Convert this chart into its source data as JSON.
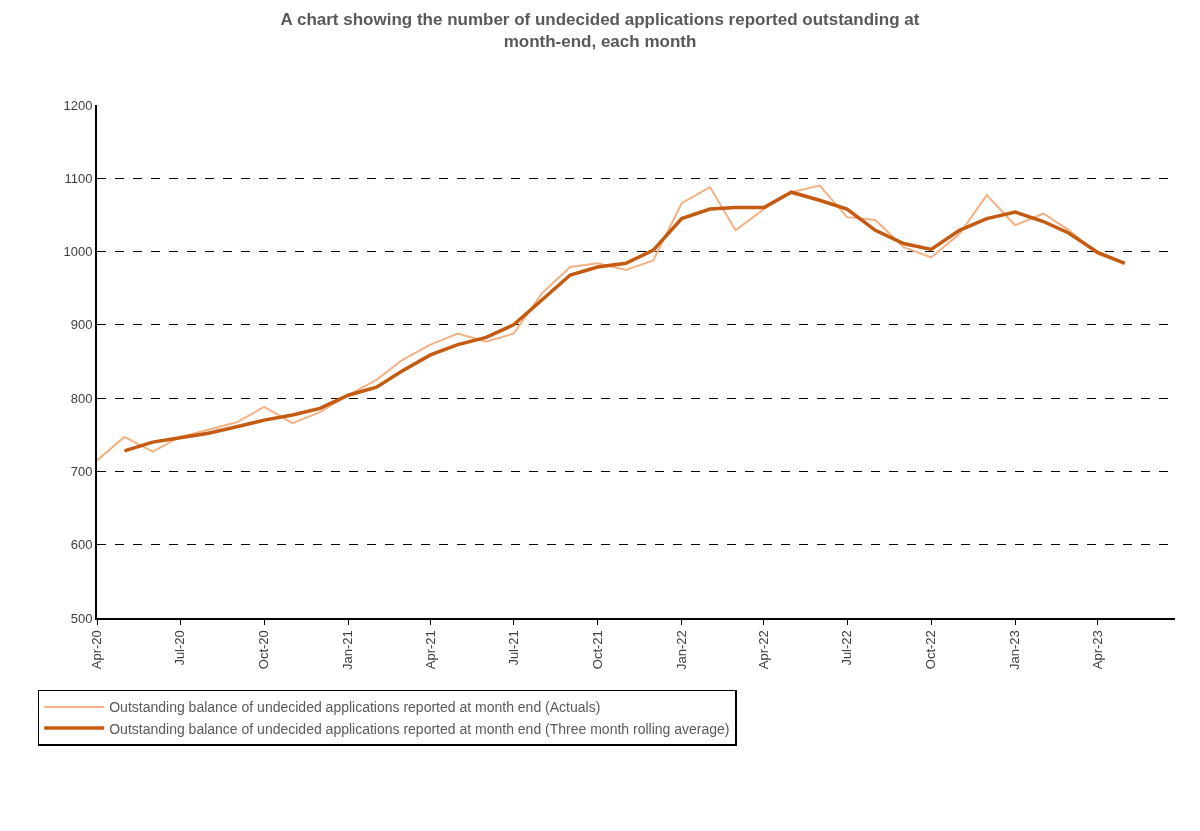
{
  "chart_data": {
    "type": "line",
    "title": "A chart showing the number of undecided applications reported outstanding at month-end, each month",
    "x": [
      "2020-04",
      "2020-05",
      "2020-06",
      "2020-07",
      "2020-08",
      "2020-09",
      "2020-10",
      "2020-11",
      "2020-12",
      "2021-01",
      "2021-02",
      "2021-03",
      "2021-04",
      "2021-05",
      "2021-06",
      "2021-07",
      "2021-08",
      "2021-09",
      "2021-10",
      "2021-11",
      "2021-12",
      "2022-01",
      "2022-02",
      "2022-03",
      "2022-04",
      "2022-05",
      "2022-06",
      "2022-07",
      "2022-08",
      "2022-09",
      "2022-10",
      "2022-11",
      "2022-12",
      "2023-01",
      "2023-02",
      "2023-03",
      "2023-04",
      "2023-05"
    ],
    "series": [
      {
        "name": "Outstanding balance of undecided applications reported at month end (Actuals)",
        "color": "#f4b183",
        "values": [
          715,
          747,
          727,
          747,
          757,
          767,
          788,
          766,
          781,
          804,
          825,
          852,
          873,
          888,
          877,
          888,
          943,
          979,
          984,
          975,
          988,
          1066,
          1088,
          1029,
          1058,
          1081,
          1090,
          1047,
          1043,
          1006,
          992,
          1024,
          1077,
          1036,
          1052,
          1029,
          997,
          984
        ]
      },
      {
        "name": "Outstanding balance of undecided applications reported at month end (Three month rolling average)",
        "color": "#c55a11",
        "x": [
          "2020-05",
          "2020-06",
          "2020-07",
          "2020-08",
          "2020-09",
          "2020-10",
          "2020-11",
          "2020-12",
          "2021-01",
          "2021-02",
          "2021-03",
          "2021-04",
          "2021-05",
          "2021-06",
          "2021-07",
          "2021-08",
          "2021-09",
          "2021-10",
          "2021-11",
          "2021-12",
          "2022-01",
          "2022-02",
          "2022-03",
          "2022-04",
          "2022-05",
          "2022-06",
          "2022-07",
          "2022-08",
          "2022-09",
          "2022-10",
          "2022-11",
          "2022-12",
          "2023-01",
          "2023-02",
          "2023-03",
          "2023-04",
          "2023-05"
        ],
        "values": [
          728,
          740,
          746,
          752,
          761,
          770,
          777,
          786,
          804,
          815,
          837,
          859,
          873,
          883,
          900,
          934,
          968,
          979,
          984,
          1002,
          1045,
          1058,
          1060,
          1060,
          1081,
          1070,
          1058,
          1029,
          1011,
          1003,
          1029,
          1045,
          1054,
          1041,
          1025,
          999,
          984
        ]
      }
    ],
    "xlim": [
      "2020-04-01",
      "2023-06-25"
    ],
    "xticks": [
      {
        "value": "2020-04",
        "label": "Apr-20"
      },
      {
        "value": "2020-07",
        "label": "Jul-20"
      },
      {
        "value": "2020-10",
        "label": "Oct-20"
      },
      {
        "value": "2021-01",
        "label": "Jan-21"
      },
      {
        "value": "2021-04",
        "label": "Apr-21"
      },
      {
        "value": "2021-07",
        "label": "Jul-21"
      },
      {
        "value": "2021-10",
        "label": "Oct-21"
      },
      {
        "value": "2022-01",
        "label": "Jan-22"
      },
      {
        "value": "2022-04",
        "label": "Apr-22"
      },
      {
        "value": "2022-07",
        "label": "Jul-22"
      },
      {
        "value": "2022-10",
        "label": "Oct-22"
      },
      {
        "value": "2023-01",
        "label": "Jan-23"
      },
      {
        "value": "2023-04",
        "label": "Apr-23"
      }
    ],
    "ylim": [
      500,
      1200
    ],
    "yticks": [
      500,
      600,
      700,
      800,
      900,
      1000,
      1100,
      1200
    ],
    "grid": "y",
    "legend": "bottom",
    "marker": "none",
    "line_style": "solid"
  }
}
